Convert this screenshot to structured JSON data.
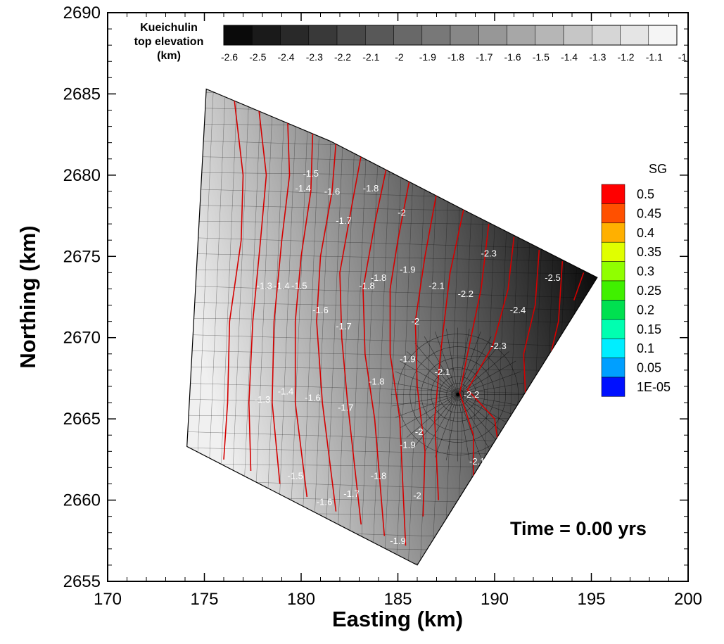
{
  "chart_data": {
    "type": "contour",
    "xlabel": "Easting (km)",
    "ylabel": "Northing (km)",
    "xlim": [
      170,
      200
    ],
    "ylim": [
      2655,
      2690
    ],
    "xticks": [
      170,
      175,
      180,
      185,
      190,
      195,
      200
    ],
    "yticks": [
      2655,
      2660,
      2665,
      2670,
      2675,
      2680,
      2685,
      2690
    ],
    "annotation": "Time = 0.00 yrs",
    "domain_polygon": [
      [
        175.1,
        2685.3
      ],
      [
        181.5,
        2682.1
      ],
      [
        188.5,
        2677.8
      ],
      [
        195.3,
        2673.7
      ],
      [
        186.0,
        2656.0
      ],
      [
        174.1,
        2663.3
      ]
    ],
    "well_location": [
      188.1,
      2666.5
    ],
    "elevation_colorbar": {
      "title_lines": [
        "Kueichulin",
        "top elevation",
        "(km)"
      ],
      "levels": [
        -2.6,
        -2.5,
        -2.4,
        -2.3,
        -2.2,
        -2.1,
        -2.0,
        -1.9,
        -1.8,
        -1.7,
        -1.6,
        -1.5,
        -1.4,
        -1.3,
        -1.2,
        -1.1,
        -1.0
      ],
      "tick_labels": [
        "-2.6",
        "-2.5",
        "-2.4",
        "-2.3",
        "-2.2",
        "-2.1",
        "-2",
        "-1.9",
        "-1.8",
        "-1.7",
        "-1.6",
        "-1.5",
        "-1.4",
        "-1.3",
        "-1.2",
        "-1.1",
        "-1"
      ],
      "colormap": "grayscale, black to white"
    },
    "sg_legend": {
      "title": "SG",
      "labels": [
        "0.5",
        "0.45",
        "0.4",
        "0.35",
        "0.3",
        "0.25",
        "0.2",
        "0.15",
        "0.1",
        "0.05",
        "1E-05"
      ],
      "colors": [
        "#ff0000",
        "#ff5000",
        "#ffb000",
        "#e0ff00",
        "#90ff00",
        "#40f000",
        "#00e050",
        "#00ffb0",
        "#00eeff",
        "#009fff",
        "#0010ff"
      ]
    },
    "contours": [
      {
        "level": -1.1,
        "points": [
          [
            176.5,
            2685.1
          ],
          [
            177.0,
            2680.0
          ],
          [
            176.9,
            2676.0
          ],
          [
            176.3,
            2671.0
          ],
          [
            176.2,
            2666.0
          ],
          [
            176.0,
            2662.5
          ]
        ]
      },
      {
        "level": -1.2,
        "points": [
          [
            177.8,
            2684.2
          ],
          [
            178.2,
            2680.0
          ],
          [
            177.9,
            2676.0
          ],
          [
            177.5,
            2671.0
          ],
          [
            177.3,
            2666.0
          ],
          [
            177.4,
            2661.8
          ]
        ]
      },
      {
        "level": -1.3,
        "points": [
          [
            179.3,
            2683.4
          ],
          [
            179.4,
            2680.0
          ],
          [
            179.0,
            2676.0
          ],
          [
            178.6,
            2671.0
          ],
          [
            178.5,
            2666.0
          ],
          [
            178.9,
            2661.0
          ]
        ]
      },
      {
        "level": -1.4,
        "points": [
          [
            180.6,
            2682.7
          ],
          [
            180.5,
            2679.0
          ],
          [
            180.0,
            2675.0
          ],
          [
            179.7,
            2671.0
          ],
          [
            179.7,
            2666.0
          ],
          [
            180.3,
            2660.2
          ]
        ]
      },
      {
        "level": -1.5,
        "points": [
          [
            181.8,
            2682.0
          ],
          [
            181.6,
            2679.0
          ],
          [
            181.0,
            2675.0
          ],
          [
            180.8,
            2671.0
          ],
          [
            181.1,
            2666.0
          ],
          [
            181.8,
            2659.3
          ]
        ]
      },
      {
        "level": -1.6,
        "points": [
          [
            183.1,
            2681.2
          ],
          [
            182.6,
            2678.0
          ],
          [
            182.0,
            2674.0
          ],
          [
            182.1,
            2670.0
          ],
          [
            182.4,
            2666.0
          ],
          [
            183.1,
            2658.5
          ]
        ]
      },
      {
        "level": -1.7,
        "points": [
          [
            184.4,
            2680.4
          ],
          [
            183.8,
            2677.0
          ],
          [
            183.2,
            2673.0
          ],
          [
            183.3,
            2669.0
          ],
          [
            183.8,
            2665.0
          ],
          [
            184.3,
            2657.8
          ]
        ]
      },
      {
        "level": -1.8,
        "points": [
          [
            185.6,
            2679.7
          ],
          [
            185.0,
            2676.0
          ],
          [
            184.6,
            2673.0
          ],
          [
            184.6,
            2669.0
          ],
          [
            185.1,
            2665.0
          ],
          [
            185.4,
            2657.2
          ]
        ]
      },
      {
        "level": -1.9,
        "points": [
          [
            187.0,
            2678.9
          ],
          [
            186.4,
            2675.0
          ],
          [
            185.9,
            2671.0
          ],
          [
            186.0,
            2667.0
          ],
          [
            186.4,
            2663.0
          ],
          [
            186.3,
            2659.0
          ]
        ]
      },
      {
        "level": -2.0,
        "points": [
          [
            188.4,
            2677.9
          ],
          [
            187.7,
            2674.0
          ],
          [
            187.2,
            2669.0
          ],
          [
            186.9,
            2665.0
          ],
          [
            187.1,
            2660.0
          ]
        ]
      },
      {
        "level": -2.1,
        "points": [
          [
            189.7,
            2677.0
          ],
          [
            189.3,
            2673.0
          ],
          [
            188.6,
            2669.0
          ],
          [
            188.2,
            2666.6
          ],
          [
            188.9,
            2664.0
          ],
          [
            188.9,
            2661.0
          ]
        ]
      },
      {
        "level": -2.2,
        "points": [
          [
            191.0,
            2676.2
          ],
          [
            190.7,
            2673.0
          ],
          [
            189.9,
            2669.5
          ],
          [
            188.6,
            2666.8
          ],
          [
            190.0,
            2665.0
          ],
          [
            190.2,
            2663.3
          ]
        ]
      },
      {
        "level": -2.3,
        "points": [
          [
            192.3,
            2675.4
          ],
          [
            192.1,
            2672.0
          ],
          [
            191.5,
            2669.0
          ],
          [
            191.6,
            2666.4
          ]
        ]
      },
      {
        "level": -2.4,
        "points": [
          [
            193.5,
            2674.7
          ],
          [
            193.3,
            2671.0
          ],
          [
            192.9,
            2669.0
          ]
        ]
      },
      {
        "level": -2.5,
        "points": [
          [
            194.6,
            2674.0
          ],
          [
            194.1,
            2672.3
          ]
        ]
      }
    ],
    "contour_labels": [
      {
        "x": 180.1,
        "y": 2679.0,
        "text": "-1.4"
      },
      {
        "x": 180.5,
        "y": 2679.9,
        "text": "-1.5"
      },
      {
        "x": 181.6,
        "y": 2678.8,
        "text": "-1.6"
      },
      {
        "x": 182.2,
        "y": 2677.0,
        "text": "-1.7"
      },
      {
        "x": 183.6,
        "y": 2679.0,
        "text": "-1.8"
      },
      {
        "x": 185.2,
        "y": 2677.5,
        "text": "-2"
      },
      {
        "x": 185.5,
        "y": 2674.0,
        "text": "-1.9"
      },
      {
        "x": 183.4,
        "y": 2673.0,
        "text": "-1.8"
      },
      {
        "x": 184.0,
        "y": 2673.5,
        "text": "-1.8"
      },
      {
        "x": 187.0,
        "y": 2673.0,
        "text": "-2.1"
      },
      {
        "x": 188.5,
        "y": 2672.5,
        "text": "-2.2"
      },
      {
        "x": 189.7,
        "y": 2675.0,
        "text": "-2.3"
      },
      {
        "x": 193.0,
        "y": 2673.5,
        "text": "-2.5"
      },
      {
        "x": 191.2,
        "y": 2671.5,
        "text": "-2.4"
      },
      {
        "x": 178.1,
        "y": 2673.0,
        "text": "-1.3"
      },
      {
        "x": 179.0,
        "y": 2673.0,
        "text": "-1.4"
      },
      {
        "x": 179.9,
        "y": 2673.0,
        "text": "-1.5"
      },
      {
        "x": 181.0,
        "y": 2671.5,
        "text": "-1.6"
      },
      {
        "x": 182.2,
        "y": 2670.5,
        "text": "-1.7"
      },
      {
        "x": 185.5,
        "y": 2668.5,
        "text": "-1.9"
      },
      {
        "x": 185.9,
        "y": 2670.8,
        "text": "-2"
      },
      {
        "x": 187.3,
        "y": 2667.7,
        "text": "-2.1"
      },
      {
        "x": 190.2,
        "y": 2669.3,
        "text": "-2.3"
      },
      {
        "x": 188.8,
        "y": 2666.3,
        "text": "-2.2"
      },
      {
        "x": 183.9,
        "y": 2667.1,
        "text": "-1.8"
      },
      {
        "x": 182.3,
        "y": 2665.5,
        "text": "-1.7"
      },
      {
        "x": 180.6,
        "y": 2666.1,
        "text": "-1.6"
      },
      {
        "x": 179.2,
        "y": 2666.5,
        "text": "-1.4"
      },
      {
        "x": 178.0,
        "y": 2666.0,
        "text": "-1.3"
      },
      {
        "x": 186.1,
        "y": 2664.0,
        "text": "-2"
      },
      {
        "x": 185.5,
        "y": 2663.2,
        "text": "-1.9"
      },
      {
        "x": 184.0,
        "y": 2661.3,
        "text": "-1.8"
      },
      {
        "x": 182.6,
        "y": 2660.2,
        "text": "-1.7"
      },
      {
        "x": 181.2,
        "y": 2659.7,
        "text": "-1.6"
      },
      {
        "x": 179.7,
        "y": 2661.3,
        "text": "-1.5"
      },
      {
        "x": 189.1,
        "y": 2662.2,
        "text": "-2.1"
      },
      {
        "x": 186.0,
        "y": 2660.1,
        "text": "-2"
      },
      {
        "x": 185.0,
        "y": 2657.3,
        "text": "-1.9"
      }
    ]
  }
}
